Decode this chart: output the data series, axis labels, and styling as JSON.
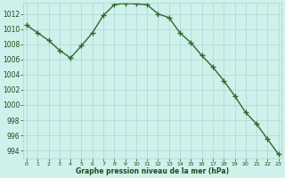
{
  "x": [
    0,
    1,
    2,
    3,
    4,
    5,
    6,
    7,
    8,
    9,
    10,
    11,
    12,
    13,
    14,
    15,
    16,
    17,
    18,
    19,
    20,
    21,
    22,
    23
  ],
  "y": [
    1010.5,
    1009.5,
    1008.5,
    1007.2,
    1006.2,
    1007.8,
    1009.5,
    1011.8,
    1013.2,
    1013.4,
    1013.3,
    1013.2,
    1012.0,
    1011.5,
    1009.5,
    1008.2,
    1006.5,
    1005.0,
    1003.2,
    1001.2,
    999.0,
    997.5,
    995.5,
    993.5
  ],
  "line_color": "#2d6a2d",
  "marker": "+",
  "marker_size": 4.0,
  "bg_color": "#cff0eb",
  "grid_color": "#a8d8d0",
  "xlabel": "Graphe pression niveau de la mer (hPa)",
  "xlabel_color": "#1a4d1a",
  "tick_color": "#1a4d1a",
  "ylim": [
    993,
    1013.5
  ],
  "yticks": [
    994,
    996,
    998,
    1000,
    1002,
    1004,
    1006,
    1008,
    1010,
    1012
  ],
  "xticks": [
    0,
    1,
    2,
    3,
    4,
    5,
    6,
    7,
    8,
    9,
    10,
    11,
    12,
    13,
    14,
    15,
    16,
    17,
    18,
    19,
    20,
    21,
    22,
    23
  ],
  "linewidth": 1.0,
  "xlim": [
    -0.3,
    23.3
  ]
}
